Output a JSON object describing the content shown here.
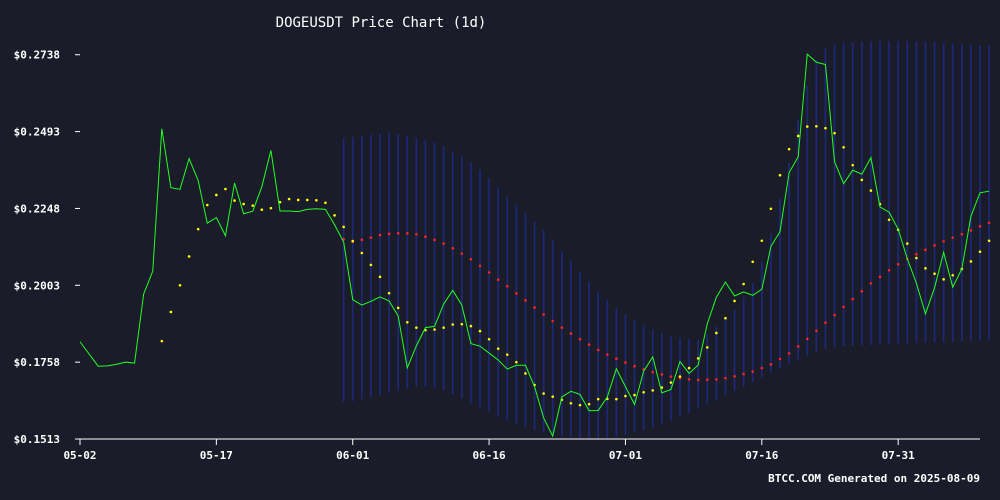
{
  "chart_data": {
    "type": "line",
    "title": "DOGEUSDT Price Chart (1d)",
    "xlabel": "",
    "ylabel": "",
    "ylim": [
      0.1513,
      0.2785
    ],
    "x_start": "2025-05-02",
    "x_end": "2025-08-09",
    "x_tick_labels": [
      "05-02",
      "05-17",
      "06-01",
      "06-16",
      "07-01",
      "07-16",
      "07-31"
    ],
    "y_tick_labels": [
      "$0.1513",
      "$0.1758",
      "$0.2003",
      "$0.2248",
      "$0.2493",
      "$0.2738"
    ],
    "y_ticks": [
      0.1513,
      0.1758,
      0.2003,
      0.2248,
      0.2493,
      0.2738
    ],
    "grid": false,
    "colors": {
      "background": "#1a1d29",
      "price": "#22ff22",
      "sma_fast": "#ffff00",
      "sma_slow": "#ff2222",
      "bollinger": "#1e2a8c",
      "text": "#ffffff"
    },
    "series": [
      {
        "key": "price",
        "style": "line",
        "values": [
          0.1823,
          0.1784,
          0.1745,
          0.1746,
          0.1751,
          0.1758,
          0.1755,
          0.1975,
          0.2048,
          0.2502,
          0.2314,
          0.2309,
          0.2407,
          0.2337,
          0.2201,
          0.2219,
          0.2161,
          0.2329,
          0.2231,
          0.2239,
          0.2317,
          0.2433,
          0.224,
          0.224,
          0.2238,
          0.2245,
          0.2247,
          0.2245,
          0.2196,
          0.2141,
          0.1957,
          0.194,
          0.1952,
          0.1966,
          0.1953,
          0.1905,
          0.174,
          0.181,
          0.1868,
          0.1872,
          0.1943,
          0.1987,
          0.194,
          0.1817,
          0.1809,
          0.1787,
          0.1765,
          0.1736,
          0.1748,
          0.1748,
          0.168,
          0.158,
          0.1522,
          0.1647,
          0.1665,
          0.1655,
          0.1603,
          0.1604,
          0.1647,
          0.1737,
          0.168,
          0.1623,
          0.1729,
          0.1775,
          0.166,
          0.1671,
          0.176,
          0.1722,
          0.1749,
          0.188,
          0.1965,
          0.2013,
          0.1969,
          0.1982,
          0.1971,
          0.199,
          0.2127,
          0.2174,
          0.2362,
          0.2413,
          0.274,
          0.2714,
          0.2707,
          0.2397,
          0.2327,
          0.237,
          0.2357,
          0.241,
          0.2253,
          0.2236,
          0.2182,
          0.2088,
          0.201,
          0.1912,
          0.1995,
          0.2108,
          0.1997,
          0.2055,
          0.2223,
          0.2298,
          0.2303
        ]
      },
      {
        "key": "sma_fast",
        "style": "dots",
        "values": [
          null,
          null,
          null,
          null,
          null,
          null,
          null,
          null,
          null,
          0.1825,
          0.1918,
          0.2003,
          0.2095,
          0.2182,
          0.2259,
          0.2291,
          0.231,
          0.2273,
          0.2262,
          0.2257,
          0.2244,
          0.2249,
          0.2268,
          0.2278,
          0.2275,
          0.2275,
          0.2274,
          0.2266,
          0.2226,
          0.2189,
          0.2144,
          0.2106,
          0.2068,
          0.203,
          0.1978,
          0.1931,
          0.1885,
          0.1868,
          0.186,
          0.1862,
          0.1868,
          0.1878,
          0.1879,
          0.1873,
          0.1857,
          0.1831,
          0.1801,
          0.1782,
          0.1758,
          0.1722,
          0.1685,
          0.1658,
          0.1648,
          0.1638,
          0.1627,
          0.1621,
          0.1624,
          0.164,
          0.1641,
          0.164,
          0.165,
          0.1653,
          0.1662,
          0.1668,
          0.1677,
          0.1693,
          0.1712,
          0.1739,
          0.177,
          0.1805,
          0.1851,
          0.1898,
          0.1953,
          0.2007,
          0.2078,
          0.2145,
          0.2247,
          0.2354,
          0.2437,
          0.2479,
          0.2509,
          0.251,
          0.2504,
          0.2488,
          0.2443,
          0.2386,
          0.2339,
          0.2305,
          0.2262,
          0.2212,
          0.218,
          0.2136,
          0.209,
          0.2057,
          0.204,
          0.2022,
          0.2035,
          0.2055,
          0.2079,
          0.211,
          0.2145
        ]
      },
      {
        "key": "sma_slow",
        "style": "dots",
        "values": [
          null,
          null,
          null,
          null,
          null,
          null,
          null,
          null,
          null,
          null,
          null,
          null,
          null,
          null,
          null,
          null,
          null,
          null,
          null,
          null,
          null,
          null,
          null,
          null,
          null,
          null,
          null,
          null,
          null,
          0.215,
          0.2142,
          0.2148,
          0.2155,
          0.2163,
          0.2167,
          0.2169,
          0.2169,
          0.2166,
          0.2158,
          0.2148,
          0.2136,
          0.2121,
          0.2104,
          0.2086,
          0.2065,
          0.2044,
          0.2021,
          0.2,
          0.1977,
          0.1955,
          0.1932,
          0.191,
          0.1889,
          0.1868,
          0.1849,
          0.1831,
          0.1814,
          0.1797,
          0.1782,
          0.1769,
          0.1757,
          0.1745,
          0.1735,
          0.1726,
          0.1719,
          0.1712,
          0.1707,
          0.1703,
          0.1701,
          0.1702,
          0.1703,
          0.1707,
          0.1713,
          0.172,
          0.1728,
          0.1739,
          0.1751,
          0.1768,
          0.1786,
          0.1808,
          0.1832,
          0.1858,
          0.1884,
          0.1908,
          0.1934,
          0.1959,
          0.1984,
          0.2009,
          0.203,
          0.2051,
          0.207,
          0.2087,
          0.2102,
          0.2116,
          0.213,
          0.2143,
          0.2155,
          0.2166,
          0.2178,
          0.2191,
          0.2202
        ]
      },
      {
        "key": "bollinger",
        "style": "band",
        "upper": [
          null,
          null,
          null,
          null,
          null,
          null,
          null,
          null,
          null,
          null,
          null,
          null,
          null,
          null,
          null,
          null,
          null,
          null,
          null,
          null,
          null,
          null,
          null,
          null,
          null,
          null,
          null,
          null,
          null,
          0.2472,
          0.2476,
          0.2479,
          0.2483,
          0.2486,
          0.249,
          0.2485,
          0.2478,
          0.2472,
          0.2466,
          0.2458,
          0.2445,
          0.243,
          0.2413,
          0.2395,
          0.2372,
          0.2343,
          0.2315,
          0.2285,
          0.2259,
          0.2235,
          0.2206,
          0.218,
          0.2146,
          0.2112,
          0.208,
          0.2045,
          0.2015,
          0.1983,
          0.1958,
          0.1929,
          0.191,
          0.1892,
          0.1876,
          0.1862,
          0.185,
          0.1842,
          0.1836,
          0.1832,
          0.1829,
          0.1845,
          0.187,
          0.1896,
          0.1926,
          0.1965,
          0.201,
          0.208,
          0.2168,
          0.2278,
          0.2395,
          0.253,
          0.264,
          0.272,
          0.276,
          0.277,
          0.2775,
          0.2778,
          0.278,
          0.2781,
          0.2782,
          0.2782,
          0.2782,
          0.2782,
          0.2781,
          0.2779,
          0.2778,
          0.2776,
          0.2774,
          0.2772,
          0.277,
          0.2768,
          0.2766
        ],
        "lower": [
          null,
          null,
          null,
          null,
          null,
          null,
          null,
          null,
          null,
          null,
          null,
          null,
          null,
          null,
          null,
          null,
          null,
          null,
          null,
          null,
          null,
          null,
          null,
          null,
          null,
          null,
          null,
          null,
          null,
          0.163,
          0.1635,
          0.164,
          0.1646,
          0.1653,
          0.166,
          0.1666,
          0.1673,
          0.168,
          0.168,
          0.1676,
          0.1668,
          0.1656,
          0.1642,
          0.1627,
          0.1613,
          0.1598,
          0.1584,
          0.1572,
          0.156,
          0.155,
          0.1541,
          0.1533,
          0.1526,
          0.1521,
          0.1517,
          0.1515,
          0.1514,
          0.1515,
          0.1517,
          0.1521,
          0.1527,
          0.1533,
          0.1541,
          0.155,
          0.156,
          0.1571,
          0.1583,
          0.1596,
          0.161,
          0.1624,
          0.1638,
          0.1652,
          0.1666,
          0.168,
          0.1695,
          0.171,
          0.1724,
          0.1738,
          0.1752,
          0.1766,
          0.178,
          0.1792,
          0.18,
          0.1805,
          0.1808,
          0.181,
          0.1812,
          0.1813,
          0.1815,
          0.1816,
          0.1817,
          0.1818,
          0.1819,
          0.182,
          0.1821,
          0.1822,
          0.1823,
          0.1824,
          0.1825,
          0.1826,
          0.1827
        ]
      }
    ]
  },
  "footer": {
    "text": "BTCC.COM Generated on 2025-08-09"
  }
}
